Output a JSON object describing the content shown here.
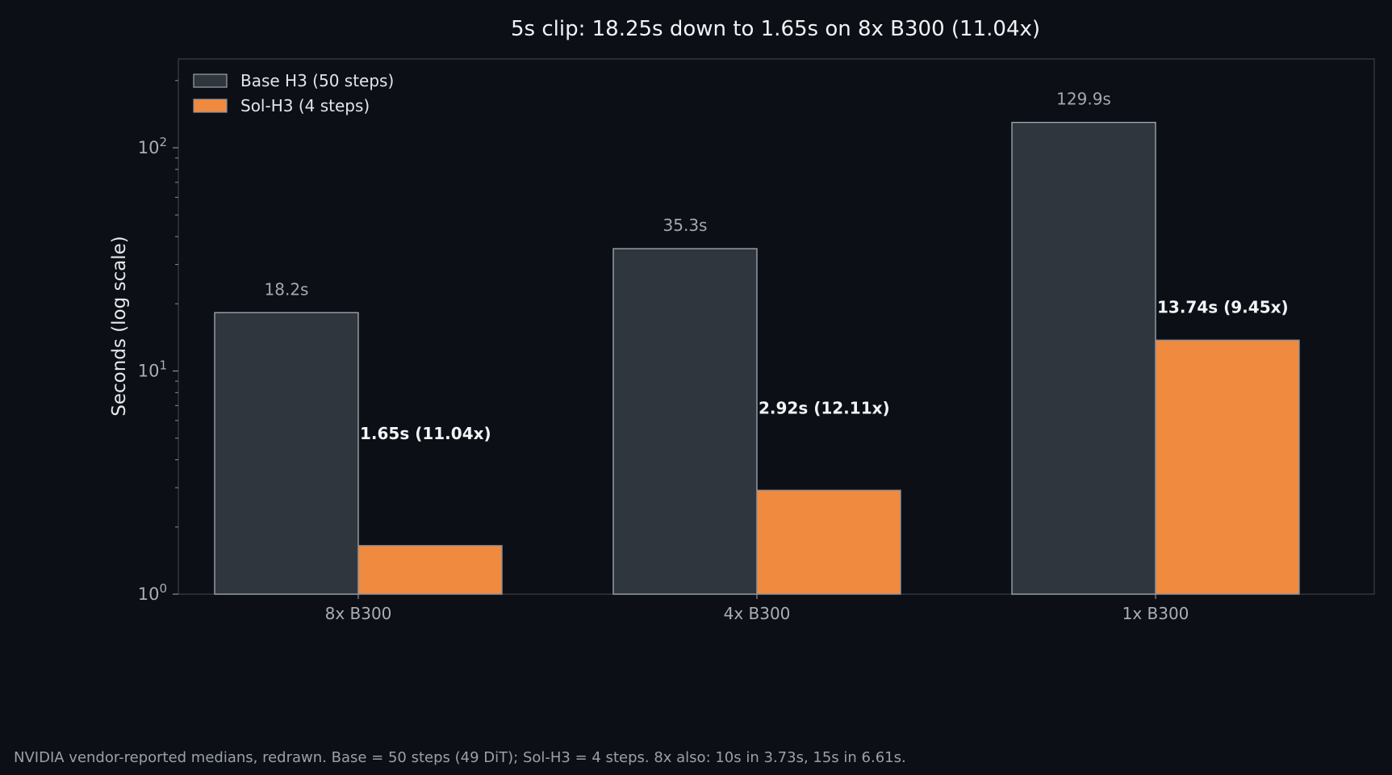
{
  "chart_data": {
    "type": "bar",
    "title": "5s clip: 18.25s down to 1.65s on 8x B300 (11.04x)",
    "xlabel": "",
    "ylabel": "Seconds (log scale)",
    "yscale": "log",
    "ylim": [
      1,
      250
    ],
    "yticks": [
      {
        "value": 1,
        "base": "10",
        "exp": "0"
      },
      {
        "value": 10,
        "base": "10",
        "exp": "1"
      },
      {
        "value": 100,
        "base": "10",
        "exp": "2"
      }
    ],
    "categories": [
      "8x B300",
      "4x B300",
      "1x B300"
    ],
    "series": [
      {
        "name": "Base H3 (50 steps)",
        "color": "#30363d",
        "edge": "#9aa3ad",
        "values": [
          18.25,
          35.3,
          129.9
        ],
        "labels": [
          "18.2s",
          "35.3s",
          "129.9s"
        ]
      },
      {
        "name": "Sol-H3 (4 steps)",
        "color": "#f08a3f",
        "edge": "#8a9099",
        "values": [
          1.65,
          2.92,
          13.74
        ],
        "labels": [
          "1.65s (11.04x)",
          "2.92s (12.11x)",
          "13.74s (9.45x)"
        ]
      }
    ],
    "legend": "top-left",
    "grid": false
  },
  "footnote": "NVIDIA vendor-reported medians, redrawn. Base = 50 steps (49 DiT); Sol-H3 = 4 steps. 8x also: 10s in 3.73s, 15s in 6.61s."
}
